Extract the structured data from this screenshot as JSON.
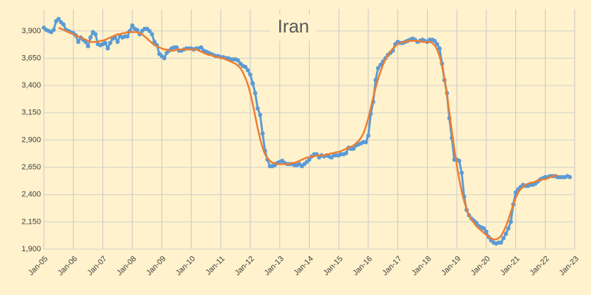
{
  "chart_data": {
    "type": "line",
    "title": "Iran",
    "categories": [
      "Jan-05",
      null,
      null,
      null,
      null,
      null,
      null,
      null,
      null,
      null,
      null,
      null,
      "Jan-06",
      null,
      null,
      null,
      null,
      null,
      null,
      null,
      null,
      null,
      null,
      null,
      "Jan-07",
      null,
      null,
      null,
      null,
      null,
      null,
      null,
      null,
      null,
      null,
      null,
      "Jan-08",
      null,
      null,
      null,
      null,
      null,
      null,
      null,
      null,
      null,
      null,
      null,
      "Jan-09",
      null,
      null,
      null,
      null,
      null,
      null,
      null,
      null,
      null,
      null,
      null,
      "Jan-10",
      null,
      null,
      null,
      null,
      null,
      null,
      null,
      null,
      null,
      null,
      null,
      "Jan-11",
      null,
      null,
      null,
      null,
      null,
      null,
      null,
      null,
      null,
      null,
      null,
      "Jan-12",
      null,
      null,
      null,
      null,
      null,
      null,
      null,
      null,
      null,
      null,
      null,
      "Jan-13",
      null,
      null,
      null,
      null,
      null,
      null,
      null,
      null,
      null,
      null,
      null,
      "Jan-14",
      null,
      null,
      null,
      null,
      null,
      null,
      null,
      null,
      null,
      null,
      null,
      "Jan-15",
      null,
      null,
      null,
      null,
      null,
      null,
      null,
      null,
      null,
      null,
      null,
      "Jan-16",
      null,
      null,
      null,
      null,
      null,
      null,
      null,
      null,
      null,
      null,
      null,
      "Jan-17",
      null,
      null,
      null,
      null,
      null,
      null,
      null,
      null,
      null,
      null,
      null,
      "Jan-18",
      null,
      null,
      null,
      null,
      null,
      null,
      null,
      null,
      null,
      null,
      null,
      "Jan-19",
      null,
      null,
      null,
      null,
      null,
      null,
      null,
      null,
      null,
      null,
      null,
      "Jan-20",
      null,
      null,
      null,
      null,
      null,
      null,
      null,
      null,
      null,
      null,
      null,
      "Jan-21",
      null,
      null,
      null,
      null,
      null,
      null,
      null,
      null,
      null,
      null,
      null,
      "Jan-22",
      null,
      null,
      null,
      null,
      null,
      null,
      null,
      null,
      null,
      null,
      null,
      "Jan-23"
    ],
    "series": [
      {
        "color": "#5b9bd5",
        "markers": true,
        "values": [
          3930,
          3910,
          3900,
          3890,
          3910,
          3990,
          4010,
          3980,
          3960,
          3910,
          3900,
          3890,
          3880,
          3860,
          3800,
          3840,
          3820,
          3800,
          3760,
          3840,
          3890,
          3870,
          3780,
          3770,
          3780,
          3790,
          3740,
          3790,
          3830,
          3840,
          3800,
          3860,
          3840,
          3850,
          3850,
          3900,
          3950,
          3920,
          3910,
          3870,
          3900,
          3920,
          3920,
          3900,
          3870,
          3800,
          3770,
          3690,
          3670,
          3650,
          3700,
          3720,
          3740,
          3750,
          3750,
          3720,
          3720,
          3730,
          3740,
          3740,
          3740,
          3730,
          3740,
          3740,
          3750,
          3720,
          3710,
          3700,
          3690,
          3680,
          3670,
          3670,
          3660,
          3660,
          3650,
          3650,
          3640,
          3640,
          3640,
          3630,
          3600,
          3580,
          3570,
          3540,
          3500,
          3420,
          3330,
          3190,
          3130,
          2960,
          2800,
          2720,
          2660,
          2660,
          2670,
          2690,
          2700,
          2710,
          2690,
          2680,
          2680,
          2680,
          2670,
          2670,
          2680,
          2660,
          2680,
          2700,
          2720,
          2750,
          2770,
          2770,
          2740,
          2760,
          2750,
          2760,
          2750,
          2740,
          2760,
          2760,
          2760,
          2770,
          2770,
          2780,
          2830,
          2820,
          2820,
          2850,
          2860,
          2870,
          2880,
          2880,
          2940,
          3140,
          3250,
          3450,
          3560,
          3590,
          3620,
          3650,
          3680,
          3700,
          3720,
          3780,
          3800,
          3790,
          3790,
          3800,
          3810,
          3820,
          3830,
          3820,
          3800,
          3810,
          3820,
          3810,
          3800,
          3820,
          3820,
          3810,
          3780,
          3740,
          3600,
          3450,
          3330,
          3100,
          2920,
          2720,
          2720,
          2710,
          2600,
          2380,
          2260,
          2210,
          2180,
          2160,
          2140,
          2110,
          2100,
          2090,
          2060,
          2010,
          1980,
          1960,
          1950,
          1960,
          1960,
          2000,
          2040,
          2090,
          2150,
          2310,
          2420,
          2450,
          2470,
          2490,
          2480,
          2480,
          2490,
          2490,
          2500,
          2520,
          2540,
          2550,
          2560,
          2560,
          2570,
          2570,
          2570,
          2560,
          2560,
          2560,
          2560,
          2570,
          2560,
          null,
          null
        ]
      },
      {
        "color": "#ed7d31",
        "markers": false,
        "values": [
          null,
          null,
          null,
          null,
          null,
          null,
          3930,
          3920,
          3910,
          3900,
          3890,
          3880,
          3870,
          3860,
          3850,
          3840,
          3830,
          3820,
          3810,
          3800,
          3800,
          3800,
          3800,
          3810,
          3810,
          3820,
          3830,
          3840,
          3850,
          3860,
          3870,
          3870,
          3880,
          3880,
          3890,
          3890,
          3890,
          3890,
          3890,
          3880,
          3870,
          3850,
          3830,
          3810,
          3790,
          3770,
          3760,
          3750,
          3740,
          3730,
          3730,
          3720,
          3720,
          3720,
          3730,
          3730,
          3730,
          3730,
          3730,
          3730,
          3730,
          3730,
          3730,
          3720,
          3710,
          3700,
          3690,
          3680,
          3680,
          3670,
          3660,
          3660,
          3650,
          3650,
          3640,
          3630,
          3620,
          3610,
          3600,
          3580,
          3560,
          3520,
          3470,
          3410,
          3330,
          3230,
          3120,
          3010,
          2910,
          2830,
          2770,
          2730,
          2710,
          2690,
          2690,
          2680,
          2680,
          2680,
          2680,
          2680,
          2680,
          2690,
          2690,
          2700,
          2710,
          2720,
          2730,
          2740,
          2740,
          2750,
          2750,
          2760,
          2760,
          2760,
          2760,
          2770,
          2770,
          2780,
          2780,
          2790,
          2790,
          2800,
          2810,
          2820,
          2830,
          2840,
          2850,
          2870,
          2890,
          2920,
          2960,
          3020,
          3100,
          3190,
          3290,
          3380,
          3460,
          3530,
          3590,
          3640,
          3680,
          3710,
          3740,
          3760,
          3780,
          3790,
          3800,
          3800,
          3810,
          3810,
          3810,
          3810,
          3810,
          3810,
          3800,
          3800,
          3800,
          3800,
          3790,
          3770,
          3730,
          3670,
          3580,
          3460,
          3320,
          3150,
          2980,
          2820,
          2670,
          2540,
          2430,
          2340,
          2270,
          2210,
          2170,
          2140,
          2110,
          2090,
          2070,
          2050,
          2030,
          2010,
          2000,
          1990,
          1990,
          2000,
          2020,
          2060,
          2110,
          2170,
          2240,
          2310,
          2370,
          2420,
          2450,
          2470,
          2490,
          2500,
          2510,
          2510,
          2520,
          2530,
          2530,
          2540,
          2540,
          2550,
          2560,
          2570,
          2570,
          2580,
          null,
          null,
          null,
          null,
          null,
          null,
          null
        ]
      }
    ],
    "ylim": [
      1900,
      4100
    ],
    "yticks": [
      {
        "value": 1900,
        "label": "1,900"
      },
      {
        "value": 2150,
        "label": "2,150"
      },
      {
        "value": 2400,
        "label": "2,400"
      },
      {
        "value": 2650,
        "label": "2,650"
      },
      {
        "value": 2900,
        "label": "2,900"
      },
      {
        "value": 3150,
        "label": "3,150"
      },
      {
        "value": 3400,
        "label": "3,400"
      },
      {
        "value": 3650,
        "label": "3,650"
      },
      {
        "value": 3900,
        "label": "3,900"
      }
    ],
    "grid": true
  }
}
